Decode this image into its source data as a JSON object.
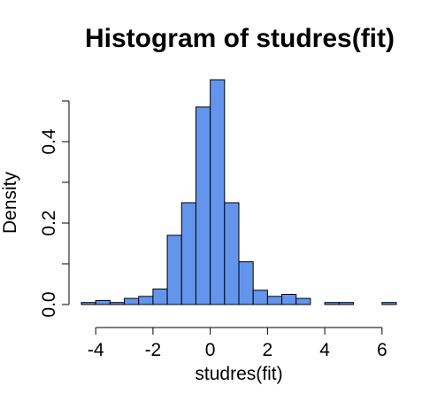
{
  "chart_data": {
    "type": "bar",
    "subtype": "histogram",
    "title": "Histogram of studres(fit)",
    "xlabel": "studres(fit)",
    "ylabel": "Density",
    "xlim": [
      -4.5,
      6.5
    ],
    "ylim": [
      0,
      0.55
    ],
    "x_ticks": [
      -4,
      -2,
      0,
      2,
      4,
      6
    ],
    "y_ticks": [
      0.0,
      0.2,
      0.4
    ],
    "x_tick_labels": [
      "-4",
      "-2",
      "0",
      "2",
      "4",
      "6"
    ],
    "y_tick_labels": [
      "0.0",
      "0.2",
      "0.4"
    ],
    "bin_width": 0.5,
    "bin_starts": [
      -4.5,
      -4.0,
      -3.5,
      -3.0,
      -2.5,
      -2.0,
      -1.5,
      -1.0,
      -0.5,
      0.0,
      0.5,
      1.0,
      1.5,
      2.0,
      2.5,
      3.0,
      3.5,
      4.0,
      4.5,
      5.0,
      5.5,
      6.0
    ],
    "values": [
      0.005,
      0.01,
      0.005,
      0.015,
      0.02,
      0.038,
      0.17,
      0.25,
      0.485,
      0.552,
      0.25,
      0.105,
      0.035,
      0.02,
      0.025,
      0.015,
      0.0,
      0.005,
      0.005,
      0.0,
      0.0,
      0.005
    ],
    "bar_color": "#6495ed",
    "grid": false
  }
}
